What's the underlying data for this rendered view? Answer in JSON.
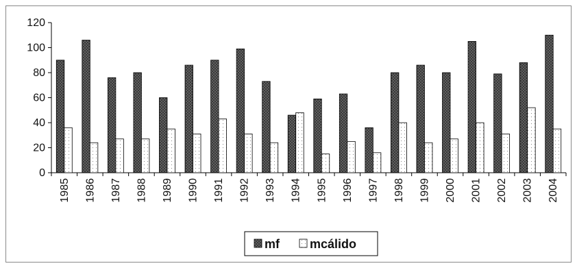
{
  "chart_data": {
    "type": "bar",
    "categories": [
      "1985",
      "1986",
      "1987",
      "1988",
      "1989",
      "1990",
      "1991",
      "1992",
      "1993",
      "1994",
      "1995",
      "1996",
      "1997",
      "1998",
      "1999",
      "2000",
      "2001",
      "2002",
      "2003",
      "2004"
    ],
    "series": [
      {
        "name": "mf",
        "values": [
          90,
          106,
          76,
          80,
          60,
          86,
          90,
          99,
          73,
          46,
          59,
          63,
          36,
          80,
          86,
          80,
          105,
          79,
          88,
          110
        ],
        "color": "#3a3a3a",
        "pattern": "dark-dotted"
      },
      {
        "name": "mcálido",
        "values": [
          36,
          24,
          27,
          27,
          35,
          31,
          43,
          31,
          24,
          48,
          15,
          25,
          16,
          40,
          24,
          27,
          40,
          31,
          52,
          35
        ],
        "color": "#ffffff",
        "pattern": "light-dotted"
      }
    ],
    "ylim": [
      0,
      120
    ],
    "yticks": [
      0,
      20,
      40,
      60,
      80,
      100,
      120
    ],
    "xlabel": "",
    "ylabel": "",
    "title": "",
    "grid": false,
    "legend": "bottom-center"
  }
}
